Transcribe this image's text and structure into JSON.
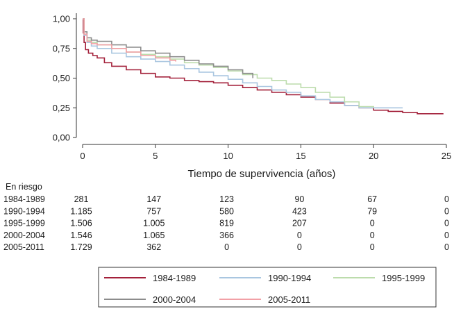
{
  "chart_data": {
    "type": "line",
    "subtype": "kaplan-meier",
    "title": "",
    "xlabel": "Tiempo de supervivencia (años)",
    "ylabel": "",
    "xlim": [
      0,
      25
    ],
    "ylim": [
      0,
      1
    ],
    "x_ticks": [
      0,
      5,
      10,
      15,
      20,
      25
    ],
    "x_tick_labels": [
      "0",
      "5",
      "10",
      "15",
      "20",
      "25"
    ],
    "y_ticks": [
      0,
      0.25,
      0.5,
      0.75,
      1.0
    ],
    "y_tick_labels": [
      "0,00",
      "0,25",
      "0,50",
      "0,75",
      "1,00"
    ],
    "grid": false,
    "legend_position": "bottom",
    "series": [
      {
        "name": "1984-1989",
        "color": "#a3203a",
        "x": [
          0,
          0.05,
          0.1,
          0.2,
          0.4,
          0.7,
          1,
          1.5,
          2,
          3,
          4,
          5,
          6,
          7,
          8,
          9,
          10,
          11,
          12,
          13,
          14,
          15,
          16,
          17,
          18,
          19,
          20,
          21,
          22,
          23,
          24,
          24.8
        ],
        "y": [
          1.0,
          0.88,
          0.8,
          0.74,
          0.71,
          0.69,
          0.67,
          0.63,
          0.6,
          0.57,
          0.54,
          0.51,
          0.5,
          0.48,
          0.47,
          0.46,
          0.44,
          0.42,
          0.4,
          0.38,
          0.36,
          0.34,
          0.32,
          0.29,
          0.27,
          0.25,
          0.23,
          0.22,
          0.21,
          0.2,
          0.2,
          0.2
        ]
      },
      {
        "name": "1990-1994",
        "color": "#a9c6e0",
        "x": [
          0,
          0.1,
          0.3,
          0.6,
          1,
          2,
          3,
          4,
          5,
          6,
          7,
          8,
          9,
          10,
          11,
          12,
          13,
          14,
          15,
          16,
          17,
          18,
          19,
          20,
          21,
          22
        ],
        "y": [
          1.0,
          0.86,
          0.8,
          0.77,
          0.75,
          0.71,
          0.68,
          0.66,
          0.64,
          0.61,
          0.58,
          0.55,
          0.52,
          0.49,
          0.46,
          0.43,
          0.4,
          0.38,
          0.35,
          0.32,
          0.3,
          0.27,
          0.25,
          0.25,
          0.25,
          0.25
        ]
      },
      {
        "name": "1995-1999",
        "color": "#bcdcac",
        "x": [
          0,
          0.1,
          0.3,
          0.6,
          1,
          2,
          3,
          4,
          5,
          6,
          7,
          8,
          9,
          10,
          11,
          12,
          13,
          14,
          15,
          16,
          17,
          18,
          19,
          20
        ],
        "y": [
          1.0,
          0.87,
          0.82,
          0.8,
          0.78,
          0.75,
          0.72,
          0.7,
          0.68,
          0.66,
          0.63,
          0.61,
          0.59,
          0.56,
          0.53,
          0.5,
          0.48,
          0.45,
          0.42,
          0.38,
          0.34,
          0.3,
          0.26,
          0.25
        ]
      },
      {
        "name": "2000-2004",
        "color": "#8c8c8c",
        "x": [
          0,
          0.1,
          0.3,
          0.6,
          1,
          2,
          3,
          4,
          5,
          6,
          7,
          8,
          9,
          10,
          11,
          11.7
        ],
        "y": [
          1.0,
          0.89,
          0.84,
          0.82,
          0.81,
          0.78,
          0.76,
          0.73,
          0.71,
          0.68,
          0.65,
          0.62,
          0.6,
          0.57,
          0.54,
          0.5
        ]
      },
      {
        "name": "2005-2011",
        "color": "#f2a0a6",
        "x": [
          0,
          0.1,
          0.3,
          0.6,
          1,
          2,
          3,
          4,
          5,
          6,
          6.4
        ],
        "y": [
          1.0,
          0.87,
          0.81,
          0.79,
          0.78,
          0.75,
          0.72,
          0.69,
          0.67,
          0.65,
          0.64
        ]
      }
    ]
  },
  "risk_table": {
    "title": "En riesgo",
    "columns_x": [
      0,
      5,
      10,
      15,
      20,
      25
    ],
    "rows": [
      {
        "label": "1984-1989",
        "values": [
          "281",
          "147",
          "123",
          "90",
          "67",
          "0"
        ]
      },
      {
        "label": "1990-1994",
        "values": [
          "1.185",
          "757",
          "580",
          "423",
          "79",
          "0"
        ]
      },
      {
        "label": "1995-1999",
        "values": [
          "1.506",
          "1.005",
          "819",
          "207",
          "0",
          "0"
        ]
      },
      {
        "label": "2000-2004",
        "values": [
          "1.546",
          "1.065",
          "366",
          "0",
          "0",
          "0"
        ]
      },
      {
        "label": "2005-2011",
        "values": [
          "1.729",
          "362",
          "0",
          "0",
          "0",
          "0"
        ]
      }
    ]
  }
}
